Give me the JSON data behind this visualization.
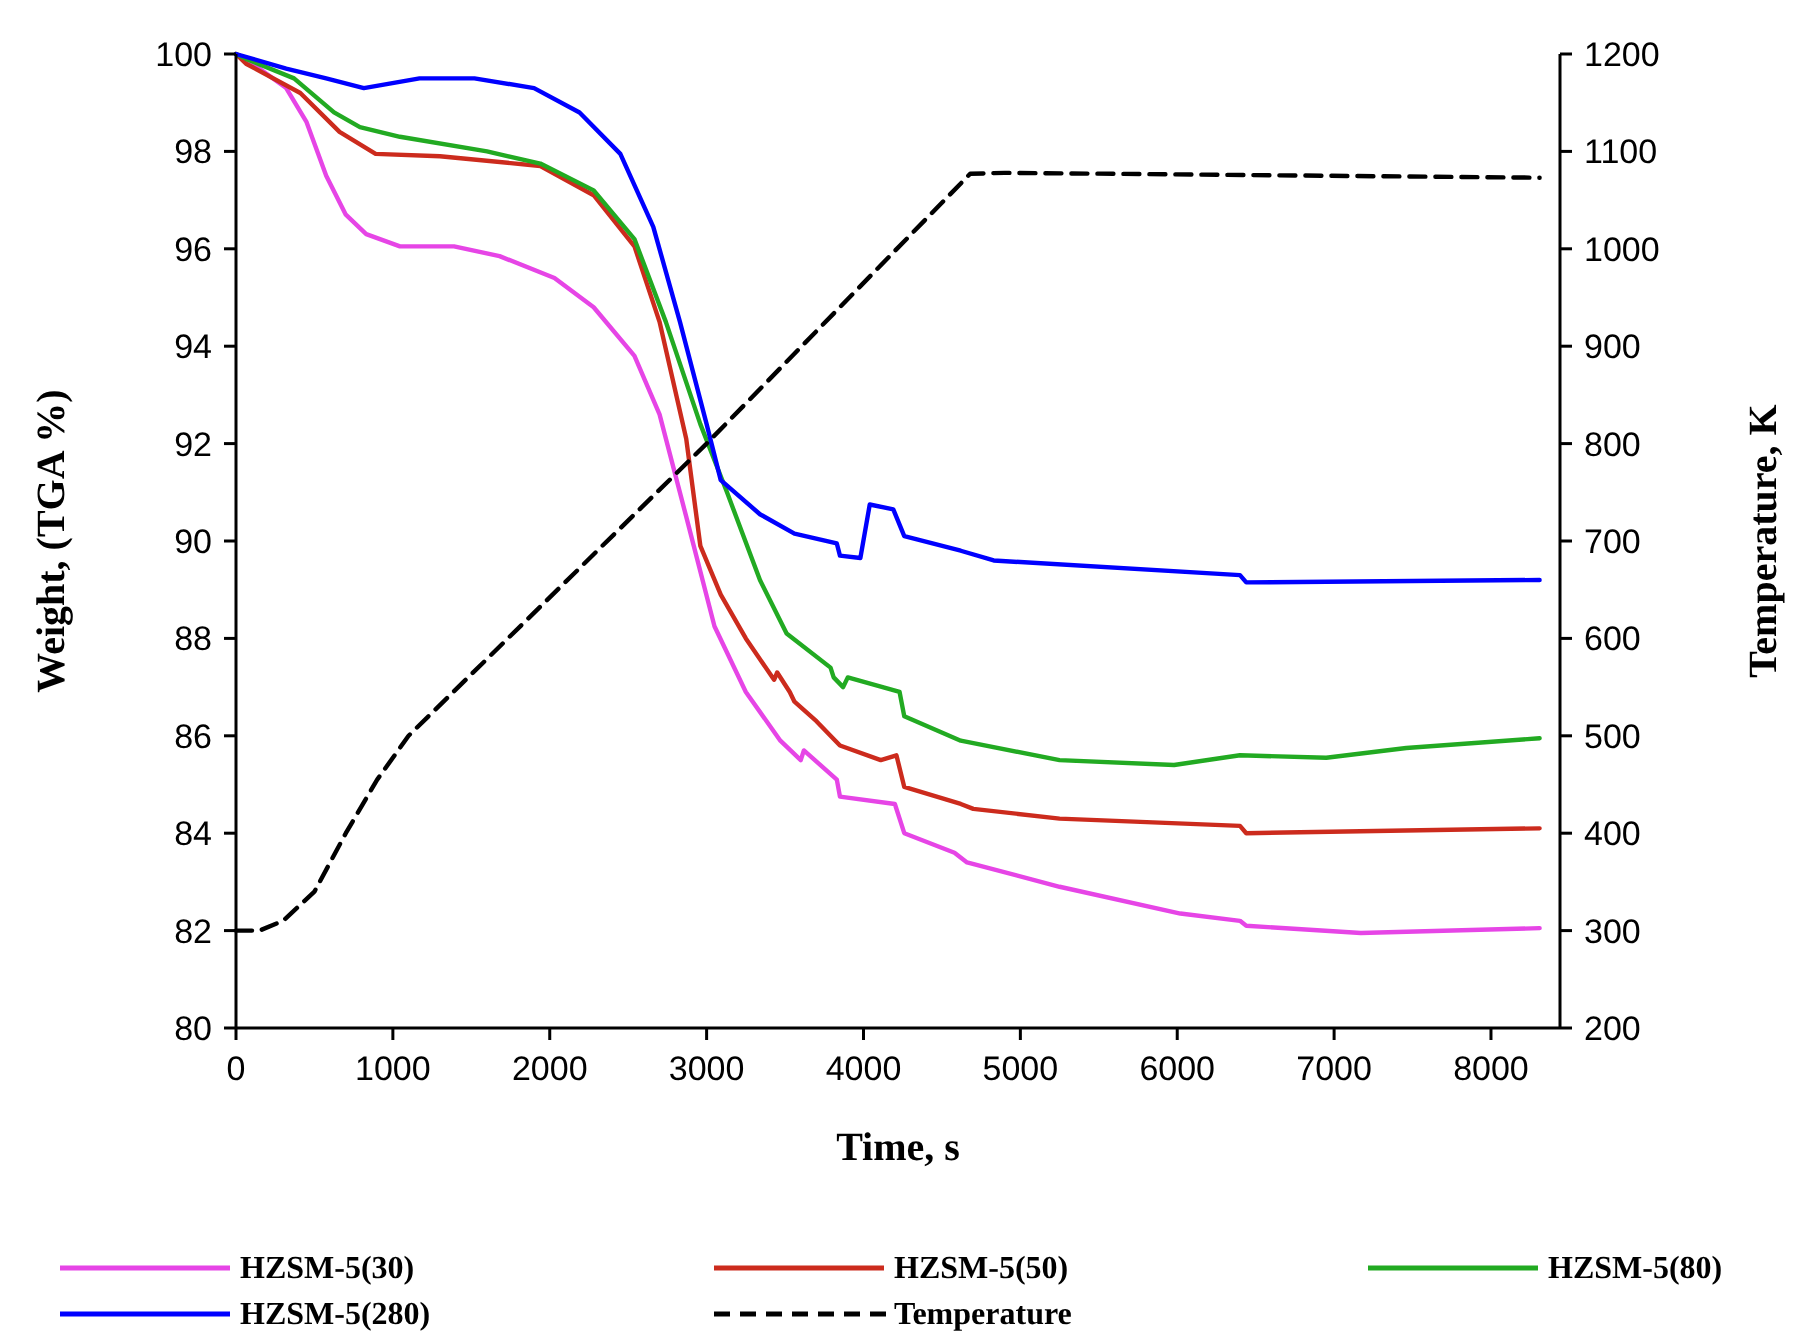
{
  "chart_data": {
    "type": "line",
    "xlabel": "Time, s",
    "ylabel": "Weight, (TGA %)",
    "y2label": "Temperature, K",
    "xlim": [
      0,
      8440
    ],
    "xticks": [
      0,
      1000,
      2000,
      3000,
      4000,
      5000,
      6000,
      7000,
      8000
    ],
    "ylim": [
      80,
      100
    ],
    "yticks": [
      80,
      82,
      84,
      86,
      88,
      90,
      92,
      94,
      96,
      98,
      100
    ],
    "y2lim": [
      200,
      1200
    ],
    "y2ticks": [
      200,
      300,
      400,
      500,
      600,
      700,
      800,
      900,
      1000,
      1100,
      1200
    ],
    "grid": false,
    "legend": "bottom",
    "marker": "none",
    "series": [
      {
        "name": "HZSM-5(30)",
        "color": "#e645e6",
        "x": [
          0,
          64,
          320,
          450,
          575,
          700,
          830,
          1045,
          1390,
          1680,
          2030,
          2280,
          2540,
          2700,
          2870,
          3050,
          3250,
          3470,
          3600,
          3620,
          3830,
          3850,
          4200,
          4260,
          4580,
          4660,
          5250,
          6020,
          6400,
          6440,
          7170,
          8310
        ],
        "values": [
          100,
          99.9,
          99.3,
          98.6,
          97.5,
          96.7,
          96.3,
          96.05,
          96.05,
          95.85,
          95.4,
          94.8,
          93.8,
          92.6,
          90.5,
          88.25,
          86.9,
          85.9,
          85.5,
          85.7,
          85.1,
          84.75,
          84.6,
          84.0,
          83.6,
          83.4,
          82.9,
          82.35,
          82.2,
          82.1,
          81.95,
          82.05
        ]
      },
      {
        "name": "HZSM-5(50)",
        "color": "#cc2b1d",
        "x": [
          0,
          64,
          410,
          660,
          890,
          1300,
          1940,
          2280,
          2540,
          2700,
          2870,
          2960,
          3090,
          3250,
          3430,
          3450,
          3530,
          3560,
          3700,
          3850,
          4110,
          4210,
          4260,
          4620,
          4700,
          5250,
          6400,
          6440,
          8310
        ],
        "values": [
          100,
          99.8,
          99.2,
          98.4,
          97.95,
          97.9,
          97.7,
          97.1,
          96.05,
          94.5,
          92.1,
          89.9,
          88.9,
          88.0,
          87.15,
          87.3,
          86.9,
          86.7,
          86.3,
          85.8,
          85.5,
          85.6,
          84.95,
          84.6,
          84.5,
          84.3,
          84.15,
          84.0,
          84.1
        ]
      },
      {
        "name": "HZSM-5(80)",
        "color": "#22aa22",
        "x": [
          0,
          64,
          370,
          625,
          790,
          1045,
          1600,
          1940,
          2280,
          2540,
          2740,
          2960,
          3130,
          3340,
          3510,
          3790,
          3810,
          3870,
          3900,
          4230,
          4260,
          4620,
          5250,
          5980,
          6400,
          6950,
          7460,
          8310
        ],
        "values": [
          100,
          99.9,
          99.5,
          98.8,
          98.5,
          98.3,
          98.0,
          97.75,
          97.2,
          96.2,
          94.5,
          92.4,
          91.0,
          89.2,
          88.1,
          87.4,
          87.2,
          87.0,
          87.2,
          86.9,
          86.4,
          85.9,
          85.5,
          85.4,
          85.6,
          85.55,
          85.75,
          85.95
        ]
      },
      {
        "name": "HZSM-5(280)",
        "color": "#0000ff",
        "x": [
          0,
          320,
          575,
          815,
          1170,
          1520,
          1900,
          2190,
          2450,
          2660,
          2830,
          3000,
          3090,
          3340,
          3560,
          3830,
          3850,
          3980,
          4040,
          4190,
          4260,
          4620,
          4830,
          6400,
          6440,
          8310
        ],
        "values": [
          100,
          99.7,
          99.5,
          99.3,
          99.5,
          99.5,
          99.3,
          98.8,
          97.95,
          96.45,
          94.5,
          92.4,
          91.25,
          90.55,
          90.15,
          89.95,
          89.7,
          89.65,
          90.75,
          90.65,
          90.1,
          89.8,
          89.6,
          89.3,
          89.15,
          89.2
        ]
      },
      {
        "name": "Temperature",
        "color": "#000000",
        "axis": "y2",
        "line_style": "dashed",
        "x": [
          0,
          150,
          300,
          500,
          700,
          900,
          1100,
          3000,
          4680,
          4900,
          8310
        ],
        "values": [
          300,
          300,
          310,
          340,
          400,
          455,
          500,
          800,
          1077,
          1078,
          1073
        ]
      }
    ]
  }
}
